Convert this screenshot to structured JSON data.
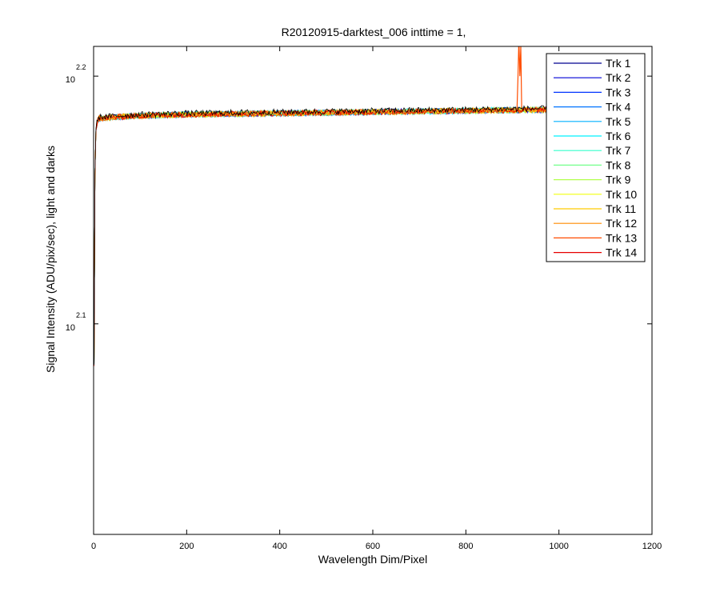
{
  "chart_data": {
    "type": "line",
    "title": "R20120915-darktest_006 inttime = 1,",
    "xlabel": "Wavelength Dim/Pixel",
    "ylabel": "Signal Intensity (ADU/pix/sec), light and darks",
    "xlim": [
      0,
      1200
    ],
    "ylim_log10": [
      2.015,
      2.212
    ],
    "yscale": "log",
    "grid": false,
    "legend_position": "top-right",
    "x_ticks": [
      {
        "value": 0,
        "label": "0"
      },
      {
        "value": 200,
        "label": "200"
      },
      {
        "value": 400,
        "label": "400"
      },
      {
        "value": 600,
        "label": "600"
      },
      {
        "value": 800,
        "label": "800"
      },
      {
        "value": 1000,
        "label": "1000"
      },
      {
        "value": 1200,
        "label": "1200"
      }
    ],
    "y_ticks": [
      {
        "log10": 2.1,
        "base": "10",
        "exponent": "2.1"
      },
      {
        "log10": 2.2,
        "base": "10",
        "exponent": "2.2"
      }
    ],
    "profile": {
      "x": [
        1,
        2,
        3,
        5,
        8,
        12,
        20,
        50,
        100,
        200,
        400,
        600,
        800,
        1000
      ],
      "log10_y": [
        2.083,
        2.13,
        2.16,
        2.178,
        2.182,
        2.183,
        2.183,
        2.1835,
        2.184,
        2.1845,
        2.185,
        2.1855,
        2.186,
        2.1865
      ],
      "noise_log10": 0.0012
    },
    "spike": {
      "series": "Trk 13",
      "x": [
        905,
        910,
        912,
        914,
        916,
        918,
        920,
        925
      ],
      "log10_y": [
        2.186,
        2.187,
        2.2,
        2.215,
        2.2,
        2.212,
        2.187,
        2.186
      ]
    },
    "series": [
      {
        "name": "Trk 1",
        "color": "#00008f"
      },
      {
        "name": "Trk 2",
        "color": "#0000d6"
      },
      {
        "name": "Trk 3",
        "color": "#0033ff"
      },
      {
        "name": "Trk 4",
        "color": "#0072ff"
      },
      {
        "name": "Trk 5",
        "color": "#00b2ff"
      },
      {
        "name": "Trk 6",
        "color": "#00f2ff"
      },
      {
        "name": "Trk 7",
        "color": "#33ffcc"
      },
      {
        "name": "Trk 8",
        "color": "#72ff8c"
      },
      {
        "name": "Trk 9",
        "color": "#b2ff4d"
      },
      {
        "name": "Trk 10",
        "color": "#f2ff0d"
      },
      {
        "name": "Trk 11",
        "color": "#ffcc00"
      },
      {
        "name": "Trk 12",
        "color": "#ff8c00"
      },
      {
        "name": "Trk 13",
        "color": "#ff4d00"
      },
      {
        "name": "Trk 14",
        "color": "#e60000"
      }
    ],
    "top_trace_color": "#000000"
  }
}
